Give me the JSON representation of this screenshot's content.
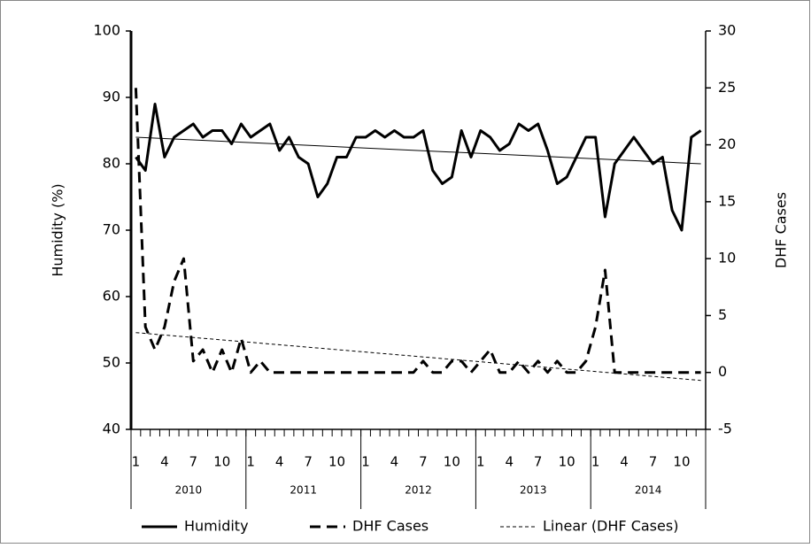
{
  "chart_data": {
    "type": "line",
    "y_label": "Humidity  (%)",
    "y2_label": "DHF Cases",
    "categories": [
      "1",
      null,
      null,
      "4",
      null,
      null,
      "7",
      null,
      null,
      "10",
      null,
      null,
      "1",
      null,
      null,
      "4",
      null,
      null,
      "7",
      null,
      null,
      "10",
      null,
      null,
      "1",
      null,
      null,
      "4",
      null,
      null,
      "7",
      null,
      null,
      "10",
      null,
      null,
      "1",
      null,
      null,
      "4",
      null,
      null,
      "7",
      null,
      null,
      "10",
      null,
      null,
      "1",
      null,
      null,
      "4",
      null,
      null,
      "7",
      null,
      null,
      "10",
      null,
      null
    ],
    "groups": [
      "2010",
      "2011",
      "2012",
      "2013",
      "2014"
    ],
    "series": [
      {
        "name": "Humidity",
        "color": "#000000",
        "style": "solid",
        "values": [
          81,
          79,
          89,
          81,
          84,
          85,
          86,
          84,
          85,
          85,
          83,
          86,
          84,
          85,
          86,
          82,
          84,
          81,
          80,
          75,
          77,
          81,
          81,
          84,
          84,
          85,
          84,
          85,
          84,
          84,
          85,
          79,
          77,
          78,
          85,
          81,
          85,
          84,
          82,
          83,
          86,
          85,
          86,
          82,
          77,
          78,
          81,
          84,
          84,
          72,
          80,
          82,
          84,
          82,
          80,
          81,
          73,
          70,
          84,
          85
        ]
      },
      {
        "name": "DHF Cases",
        "color": "#000000",
        "style": "dashed",
        "axis": "y2",
        "values": [
          25,
          4,
          2,
          4,
          8,
          10,
          1,
          2,
          0,
          2,
          0,
          3,
          0,
          1,
          0,
          0,
          0,
          0,
          0,
          0,
          0,
          0,
          0,
          0,
          0,
          0,
          0,
          0,
          0,
          0,
          1,
          0,
          0,
          1,
          1,
          0,
          1,
          2,
          0,
          0,
          1,
          0,
          1,
          0,
          1,
          0,
          0,
          1,
          4,
          9,
          0,
          0,
          0,
          0,
          0,
          0,
          0,
          0,
          0,
          0
        ]
      }
    ],
    "trendlines": [
      {
        "style": "thin",
        "color": "#000000",
        "values": [
          84,
          80
        ]
      },
      {
        "name": "Linear (DHF Cases)",
        "style": "thin-dashed",
        "color": "#000000",
        "axis": "y2",
        "values": [
          3.5,
          -0.7
        ]
      }
    ],
    "ylim": [
      40,
      100
    ],
    "yticks": [
      40,
      50,
      60,
      70,
      80,
      90,
      100
    ],
    "y2lim": [
      -5,
      30
    ],
    "y2ticks": [
      -5,
      0,
      5,
      10,
      15,
      20,
      25,
      30
    ],
    "grid": false,
    "legend": "bottom"
  }
}
